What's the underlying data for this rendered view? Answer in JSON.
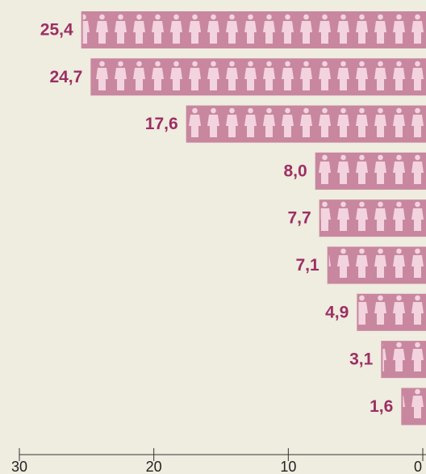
{
  "chart_data": {
    "type": "bar",
    "orientation": "horizontal",
    "values": [
      25.4,
      24.7,
      17.6,
      8.0,
      7.7,
      7.1,
      4.9,
      3.1,
      1.6
    ],
    "value_labels": [
      "25,4",
      "24,7",
      "17,6",
      "8,0",
      "7,7",
      "7,1",
      "4,9",
      "3,1",
      "1,6"
    ],
    "color": "#c8879f",
    "label_color": "#9c2f62",
    "xlim": [
      30,
      0
    ],
    "xticks": [
      30,
      20,
      10,
      0
    ]
  }
}
